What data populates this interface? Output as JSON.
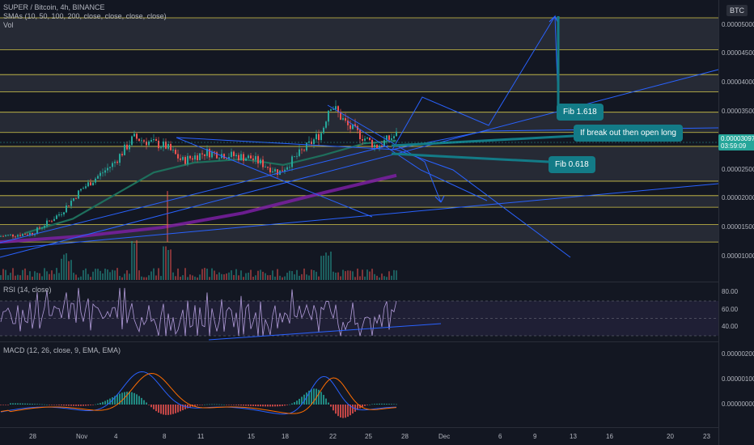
{
  "header": {
    "symbol_line": "SUPER / Bitcoin, 4h, BINANCE",
    "sma_line": "SMAs (10, 50, 100, 200, close, close, close, close)",
    "vol_line": "Vol",
    "currency_badge": "BTC"
  },
  "rsi_panel": {
    "legend": "RSI (14, close)"
  },
  "macd_panel": {
    "legend": "MACD (12, 26, close, 9, EMA, EMA)"
  },
  "price_axis": {
    "labels": [
      "0.00005000",
      "0.00004500",
      "0.00004000",
      "0.00003500",
      "0.00003000",
      "0.00002500",
      "0.00002000",
      "0.00001500",
      "0.00001000"
    ],
    "last_price": "0.00003097",
    "countdown": "03:59:09"
  },
  "rsi_axis": {
    "labels": [
      "80.00",
      "60.00",
      "40.00"
    ]
  },
  "macd_axis": {
    "labels": [
      "0.00000200",
      "0.00000100",
      "0.00000000"
    ]
  },
  "time_axis": {
    "labels": [
      "28",
      "Nov",
      "4",
      "8",
      "11",
      "15",
      "18",
      "22",
      "25",
      "28",
      "Dec",
      "6",
      "9",
      "13",
      "16",
      "20",
      "23"
    ]
  },
  "callouts": {
    "fib_1618": "Fib 1.618",
    "breakout": "If break out then open long",
    "fib_0618": "Fib 0.618"
  },
  "colors": {
    "background": "#131722",
    "candle_up": "#26a69a",
    "candle_down": "#ef5350",
    "drawing_blue": "#2962ff",
    "callout": "#137b87",
    "sma200": "#7b1fa2",
    "sma100": "#1e6f5c"
  },
  "chart_data": {
    "type": "line",
    "title": "SUPER / Bitcoin, 4h, BINANCE",
    "ylim": [
      6e-06,
      5.35e-05
    ],
    "x_dates": [
      "2021-10-28",
      "2021-11-01",
      "2021-11-04",
      "2021-11-08",
      "2021-11-11",
      "2021-11-15",
      "2021-11-18",
      "2021-11-22",
      "2021-11-25",
      "2021-11-28",
      "2021-12-01",
      "2021-12-06",
      "2021-12-09",
      "2021-12-13",
      "2021-12-16",
      "2021-12-20",
      "2021-12-23"
    ],
    "series": [
      {
        "name": "SUPER / Bitcoin",
        "x": [
          "2021-10-25",
          "2021-10-28",
          "2021-10-31",
          "2021-11-02",
          "2021-11-04",
          "2021-11-05",
          "2021-11-08",
          "2021-11-10",
          "2021-11-12",
          "2021-11-15",
          "2021-11-17",
          "2021-11-19",
          "2021-11-21",
          "2021-11-22",
          "2021-11-24",
          "2021-11-26",
          "2021-11-27"
        ],
        "values": [
          1.35e-05,
          1.4e-05,
          1.75e-05,
          2.15e-05,
          2.6e-05,
          3.05e-05,
          2.9e-05,
          2.65e-05,
          2.8e-05,
          2.7e-05,
          2.45e-05,
          2.9e-05,
          3.15e-05,
          3.65e-05,
          3.25e-05,
          2.9e-05,
          3.1e-05
        ]
      }
    ],
    "horizontal_zones": [
      [
        4.57e-05,
        5.12e-05
      ],
      [
        3.84e-05,
        4.14e-05
      ],
      [
        3.14e-05,
        3.49e-05
      ],
      [
        2.3e-05,
        2.9e-05
      ],
      [
        1.85e-05,
        2.05e-05
      ],
      [
        1.25e-05,
        1.55e-05
      ]
    ],
    "rsi": {
      "levels": [
        70,
        50,
        30
      ],
      "ylim": [
        20,
        90
      ]
    },
    "macd": {
      "ylim": [
        -5e-07,
        2.5e-06
      ]
    }
  }
}
